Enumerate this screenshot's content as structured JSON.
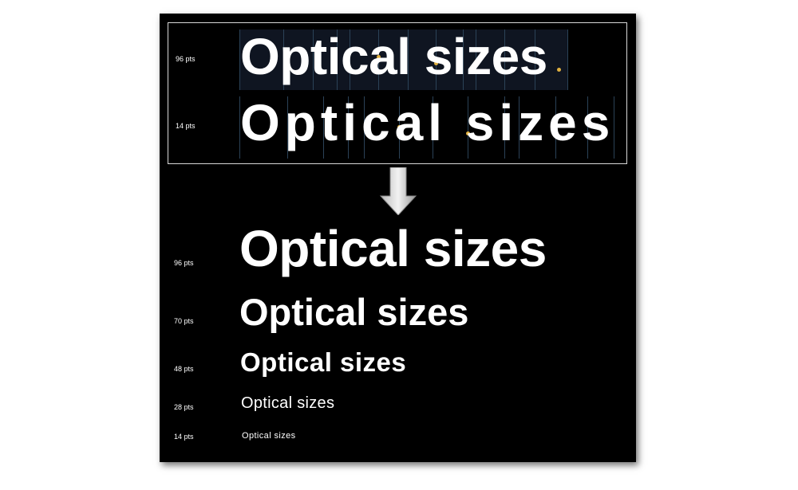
{
  "comparison": {
    "rows": [
      {
        "label": "96 pts",
        "text": "Optical sizes"
      },
      {
        "label": "14 pts",
        "text": "Optical sizes"
      }
    ]
  },
  "arrow_icon": "down-arrow-icon",
  "samples": [
    {
      "label": "96 pts",
      "text": "Optical sizes"
    },
    {
      "label": "70 pts",
      "text": "Optical sizes"
    },
    {
      "label": "48 pts",
      "text": "Optical sizes"
    },
    {
      "label": "28 pts",
      "text": "Optical sizes"
    },
    {
      "label": "14 pts",
      "text": "Optical sizes"
    }
  ],
  "colors": {
    "background": "#000000",
    "text": "#ffffff",
    "glyph_box": "#0f1521",
    "guides": "#2b4257",
    "markers": "#e0b040",
    "box_border": "#d8d8d8"
  }
}
